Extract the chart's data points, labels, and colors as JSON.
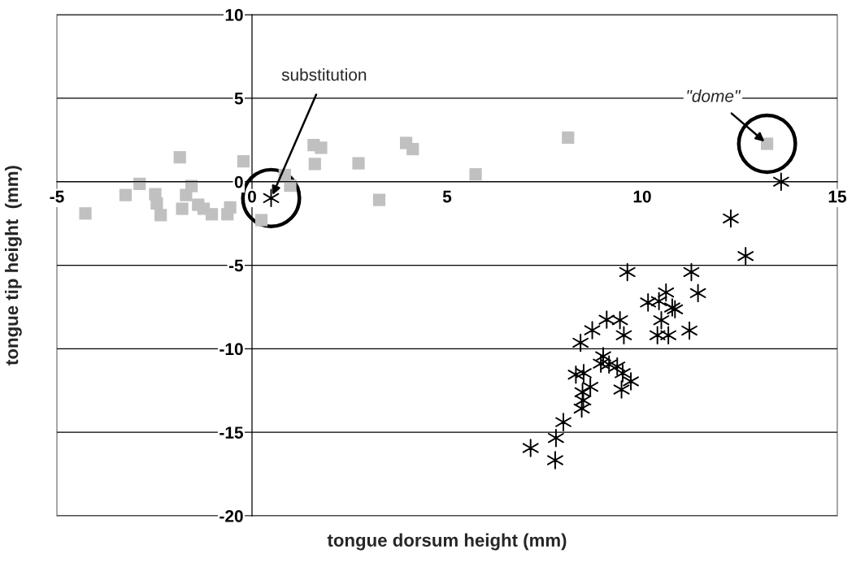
{
  "chart_data": {
    "type": "scatter",
    "xlabel": "tongue dorsum height (mm)",
    "ylabel": "tongue tip height  (mm)",
    "xlim": [
      -5,
      15
    ],
    "ylim": [
      -20,
      10
    ],
    "xticks": [
      -5,
      0,
      5,
      10,
      15
    ],
    "yticks": [
      -20,
      -15,
      -10,
      -5,
      0,
      5,
      10
    ],
    "grid": "y",
    "series": [
      {
        "color": "#c0c0c0",
        "marker": "square",
        "x": [
          -4.27,
          -3.24,
          -2.88,
          -2.48,
          -2.44,
          -2.34,
          -1.85,
          -1.55,
          -1.69,
          -1.79,
          -1.38,
          -1.24,
          -1.03,
          -0.63,
          -0.56,
          -0.22,
          0.84,
          0.98,
          0.24,
          1.58,
          1.77,
          1.61,
          2.73,
          3.26,
          3.95,
          4.12,
          5.73,
          8.1,
          13.2
        ],
        "values": [
          -1.9,
          -0.8,
          -0.13,
          -0.75,
          -1.3,
          -2.0,
          1.46,
          -0.26,
          -0.8,
          -1.62,
          -1.38,
          -1.62,
          -1.95,
          -1.95,
          -1.54,
          1.22,
          0.4,
          -0.24,
          -2.3,
          2.19,
          2.03,
          1.06,
          1.1,
          -1.09,
          2.32,
          1.95,
          0.44,
          2.64,
          2.27
        ]
      },
      {
        "color": "#000000",
        "x": [
          0.49,
          13.56,
          12.27,
          12.65,
          9.62,
          11.26,
          10.61,
          11.43,
          10.15,
          10.43,
          10.77,
          10.84,
          10.49,
          9.09,
          9.43,
          8.72,
          9.53,
          10.39,
          10.67,
          11.21,
          8.42,
          9.0,
          8.94,
          9.15,
          9.36,
          9.5,
          9.71,
          9.47,
          8.3,
          8.5,
          8.67,
          8.47,
          8.49,
          8.45,
          7.98,
          7.79,
          7.14,
          7.77
        ],
        "values": [
          -0.98,
          0.0,
          -2.2,
          -4.45,
          -5.41,
          -5.41,
          -6.63,
          -6.67,
          -7.23,
          -7.15,
          -7.53,
          -7.64,
          -8.29,
          -8.26,
          -8.29,
          -8.89,
          -9.19,
          -9.19,
          -9.19,
          -8.91,
          -9.64,
          -10.45,
          -10.89,
          -10.94,
          -11.06,
          -11.46,
          -11.95,
          -12.44,
          -11.55,
          -11.46,
          -12.28,
          -12.6,
          -13.09,
          -13.58,
          -14.39,
          -15.34,
          -15.94,
          -16.67
        ]
      }
    ],
    "annotations": [
      {
        "text": "substitution",
        "x": 0.49,
        "y": -0.98
      },
      {
        "text": "\"dome\"",
        "x": 13.2,
        "y": 2.27
      }
    ]
  }
}
